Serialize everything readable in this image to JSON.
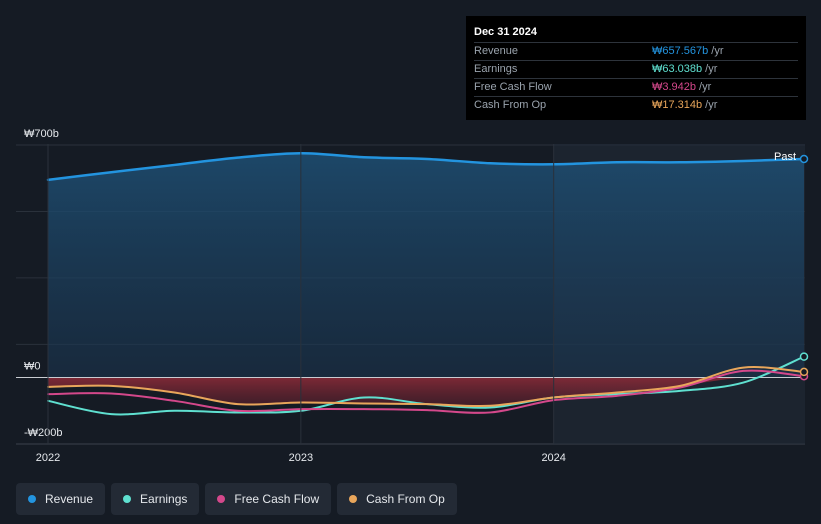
{
  "tooltip": {
    "date": "Dec 31 2024",
    "rows": [
      {
        "label": "Revenue",
        "value": "₩657.567b",
        "unit": "/yr",
        "color": "#2394df"
      },
      {
        "label": "Earnings",
        "value": "₩63.038b",
        "unit": "/yr",
        "color": "#5fe0d0"
      },
      {
        "label": "Free Cash Flow",
        "value": "₩3.942b",
        "unit": "/yr",
        "color": "#d4488b"
      },
      {
        "label": "Cash From Op",
        "value": "₩17.314b",
        "unit": "/yr",
        "color": "#e9a65b"
      }
    ]
  },
  "chart_data": {
    "type": "area",
    "x_tick_labels": [
      "2022",
      "2023",
      "2024"
    ],
    "y_tick_labels": [
      "₩700b",
      "₩0",
      "-₩200b"
    ],
    "past_label": "Past",
    "ylim": [
      -200,
      700
    ],
    "xlim": [
      2022.0,
      2024.99
    ],
    "forecast_shade_start": 2024.0,
    "series": [
      {
        "name": "Revenue",
        "color": "#2394df",
        "x": [
          2022.0,
          2022.25,
          2022.5,
          2022.75,
          2023.0,
          2023.25,
          2023.5,
          2023.75,
          2024.0,
          2024.25,
          2024.5,
          2024.75,
          2024.99
        ],
        "y": [
          595,
          618,
          640,
          662,
          675,
          663,
          658,
          645,
          642,
          648,
          648,
          652,
          658
        ]
      },
      {
        "name": "Earnings",
        "color": "#5fe0d0",
        "x": [
          2022.0,
          2022.25,
          2022.5,
          2022.75,
          2023.0,
          2023.25,
          2023.5,
          2023.75,
          2024.0,
          2024.25,
          2024.5,
          2024.75,
          2024.99
        ],
        "y": [
          -70,
          -110,
          -100,
          -105,
          -100,
          -60,
          -80,
          -90,
          -60,
          -50,
          -40,
          -15,
          63
        ]
      },
      {
        "name": "Free Cash Flow",
        "color": "#d4488b",
        "x": [
          2022.0,
          2022.25,
          2022.5,
          2022.75,
          2023.0,
          2023.25,
          2023.5,
          2023.75,
          2024.0,
          2024.25,
          2024.5,
          2024.75,
          2024.99
        ],
        "y": [
          -50,
          -48,
          -70,
          -100,
          -95,
          -95,
          -98,
          -105,
          -68,
          -55,
          -30,
          20,
          4
        ]
      },
      {
        "name": "Cash From Op",
        "color": "#e9a65b",
        "x": [
          2022.0,
          2022.25,
          2022.5,
          2022.75,
          2023.0,
          2023.25,
          2023.5,
          2023.75,
          2024.0,
          2024.25,
          2024.5,
          2024.75,
          2024.99
        ],
        "y": [
          -28,
          -25,
          -45,
          -80,
          -75,
          -78,
          -80,
          -85,
          -60,
          -45,
          -25,
          30,
          17
        ]
      }
    ]
  },
  "legend": [
    {
      "label": "Revenue",
      "color": "#2394df"
    },
    {
      "label": "Earnings",
      "color": "#5fe0d0"
    },
    {
      "label": "Free Cash Flow",
      "color": "#d4488b"
    },
    {
      "label": "Cash From Op",
      "color": "#e9a65b"
    }
  ]
}
